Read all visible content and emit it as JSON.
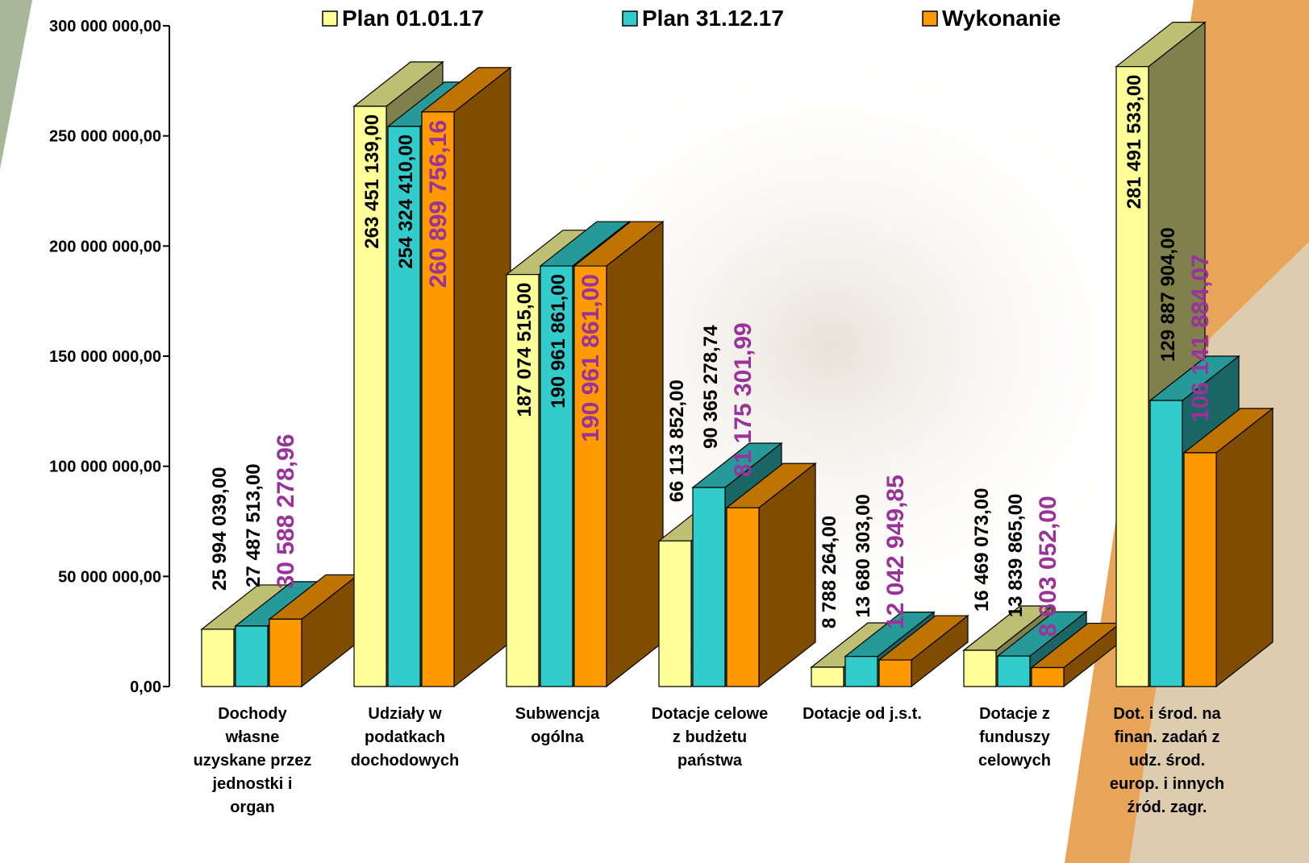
{
  "chart_data": {
    "type": "bar3d",
    "categories": [
      "Dochody\nwłasne\nuzyskane przez\njednostki  i\norgan",
      "Udziały w\npodatkach\ndochodowych",
      "Subwencja\nogólna",
      "Dotacje celowe\nz budżetu\npaństwa",
      "Dotacje od j.s.t.",
      "Dotacje z\nfunduszy\ncelowych",
      "Dot. i środ. na\nfinan. zadań z\nudz. środ.\neurop. i innych\nźród. zagr."
    ],
    "series": [
      {
        "name": "Plan 01.01.17",
        "color": "#ffff99",
        "values": [
          25994039.0,
          263451139.0,
          187074515.0,
          66113852.0,
          8788264.0,
          16469073.0,
          281491533.0
        ],
        "value_labels": [
          "25 994 039,00",
          "263 451 139,00",
          "187 074 515,00",
          "66 113 852,00",
          "8 788 264,00",
          "16 469 073,00",
          "281 491 533,00"
        ]
      },
      {
        "name": "Plan 31.12.17",
        "color": "#33cccc",
        "values": [
          27487513.0,
          254324410.0,
          190961861.0,
          90365278.74,
          13680303.0,
          13839865.0,
          129887904.0
        ],
        "value_labels": [
          "27 487 513,00",
          "254 324 410,00",
          "190 961 861,00",
          "90 365 278,74",
          "13 680 303,00",
          "13 839 865,00",
          "129 887 904,00"
        ]
      },
      {
        "name": "Wykonanie",
        "color": "#ff9900",
        "values": [
          30588278.96,
          260899756.16,
          190961861.0,
          81175301.99,
          12042949.85,
          8603052.0,
          106141884.07
        ],
        "value_labels": [
          "30 588 278,96",
          "260 899 756,16",
          "190 961 861,00",
          "81 175 301,99",
          "12 042 949,85",
          "8 603 052,00",
          "106 141 884,07"
        ]
      }
    ],
    "ylim": [
      0,
      300000000
    ],
    "yticks": [
      {
        "value": 0,
        "label": "0,00"
      },
      {
        "value": 50000000,
        "label": "50 000 000,00"
      },
      {
        "value": 100000000,
        "label": "100 000 000,00"
      },
      {
        "value": 150000000,
        "label": "150 000 000,00"
      },
      {
        "value": 200000000,
        "label": "200 000 000,00"
      },
      {
        "value": 250000000,
        "label": "250 000 000,00"
      },
      {
        "value": 300000000,
        "label": "300 000 000,00"
      }
    ]
  }
}
